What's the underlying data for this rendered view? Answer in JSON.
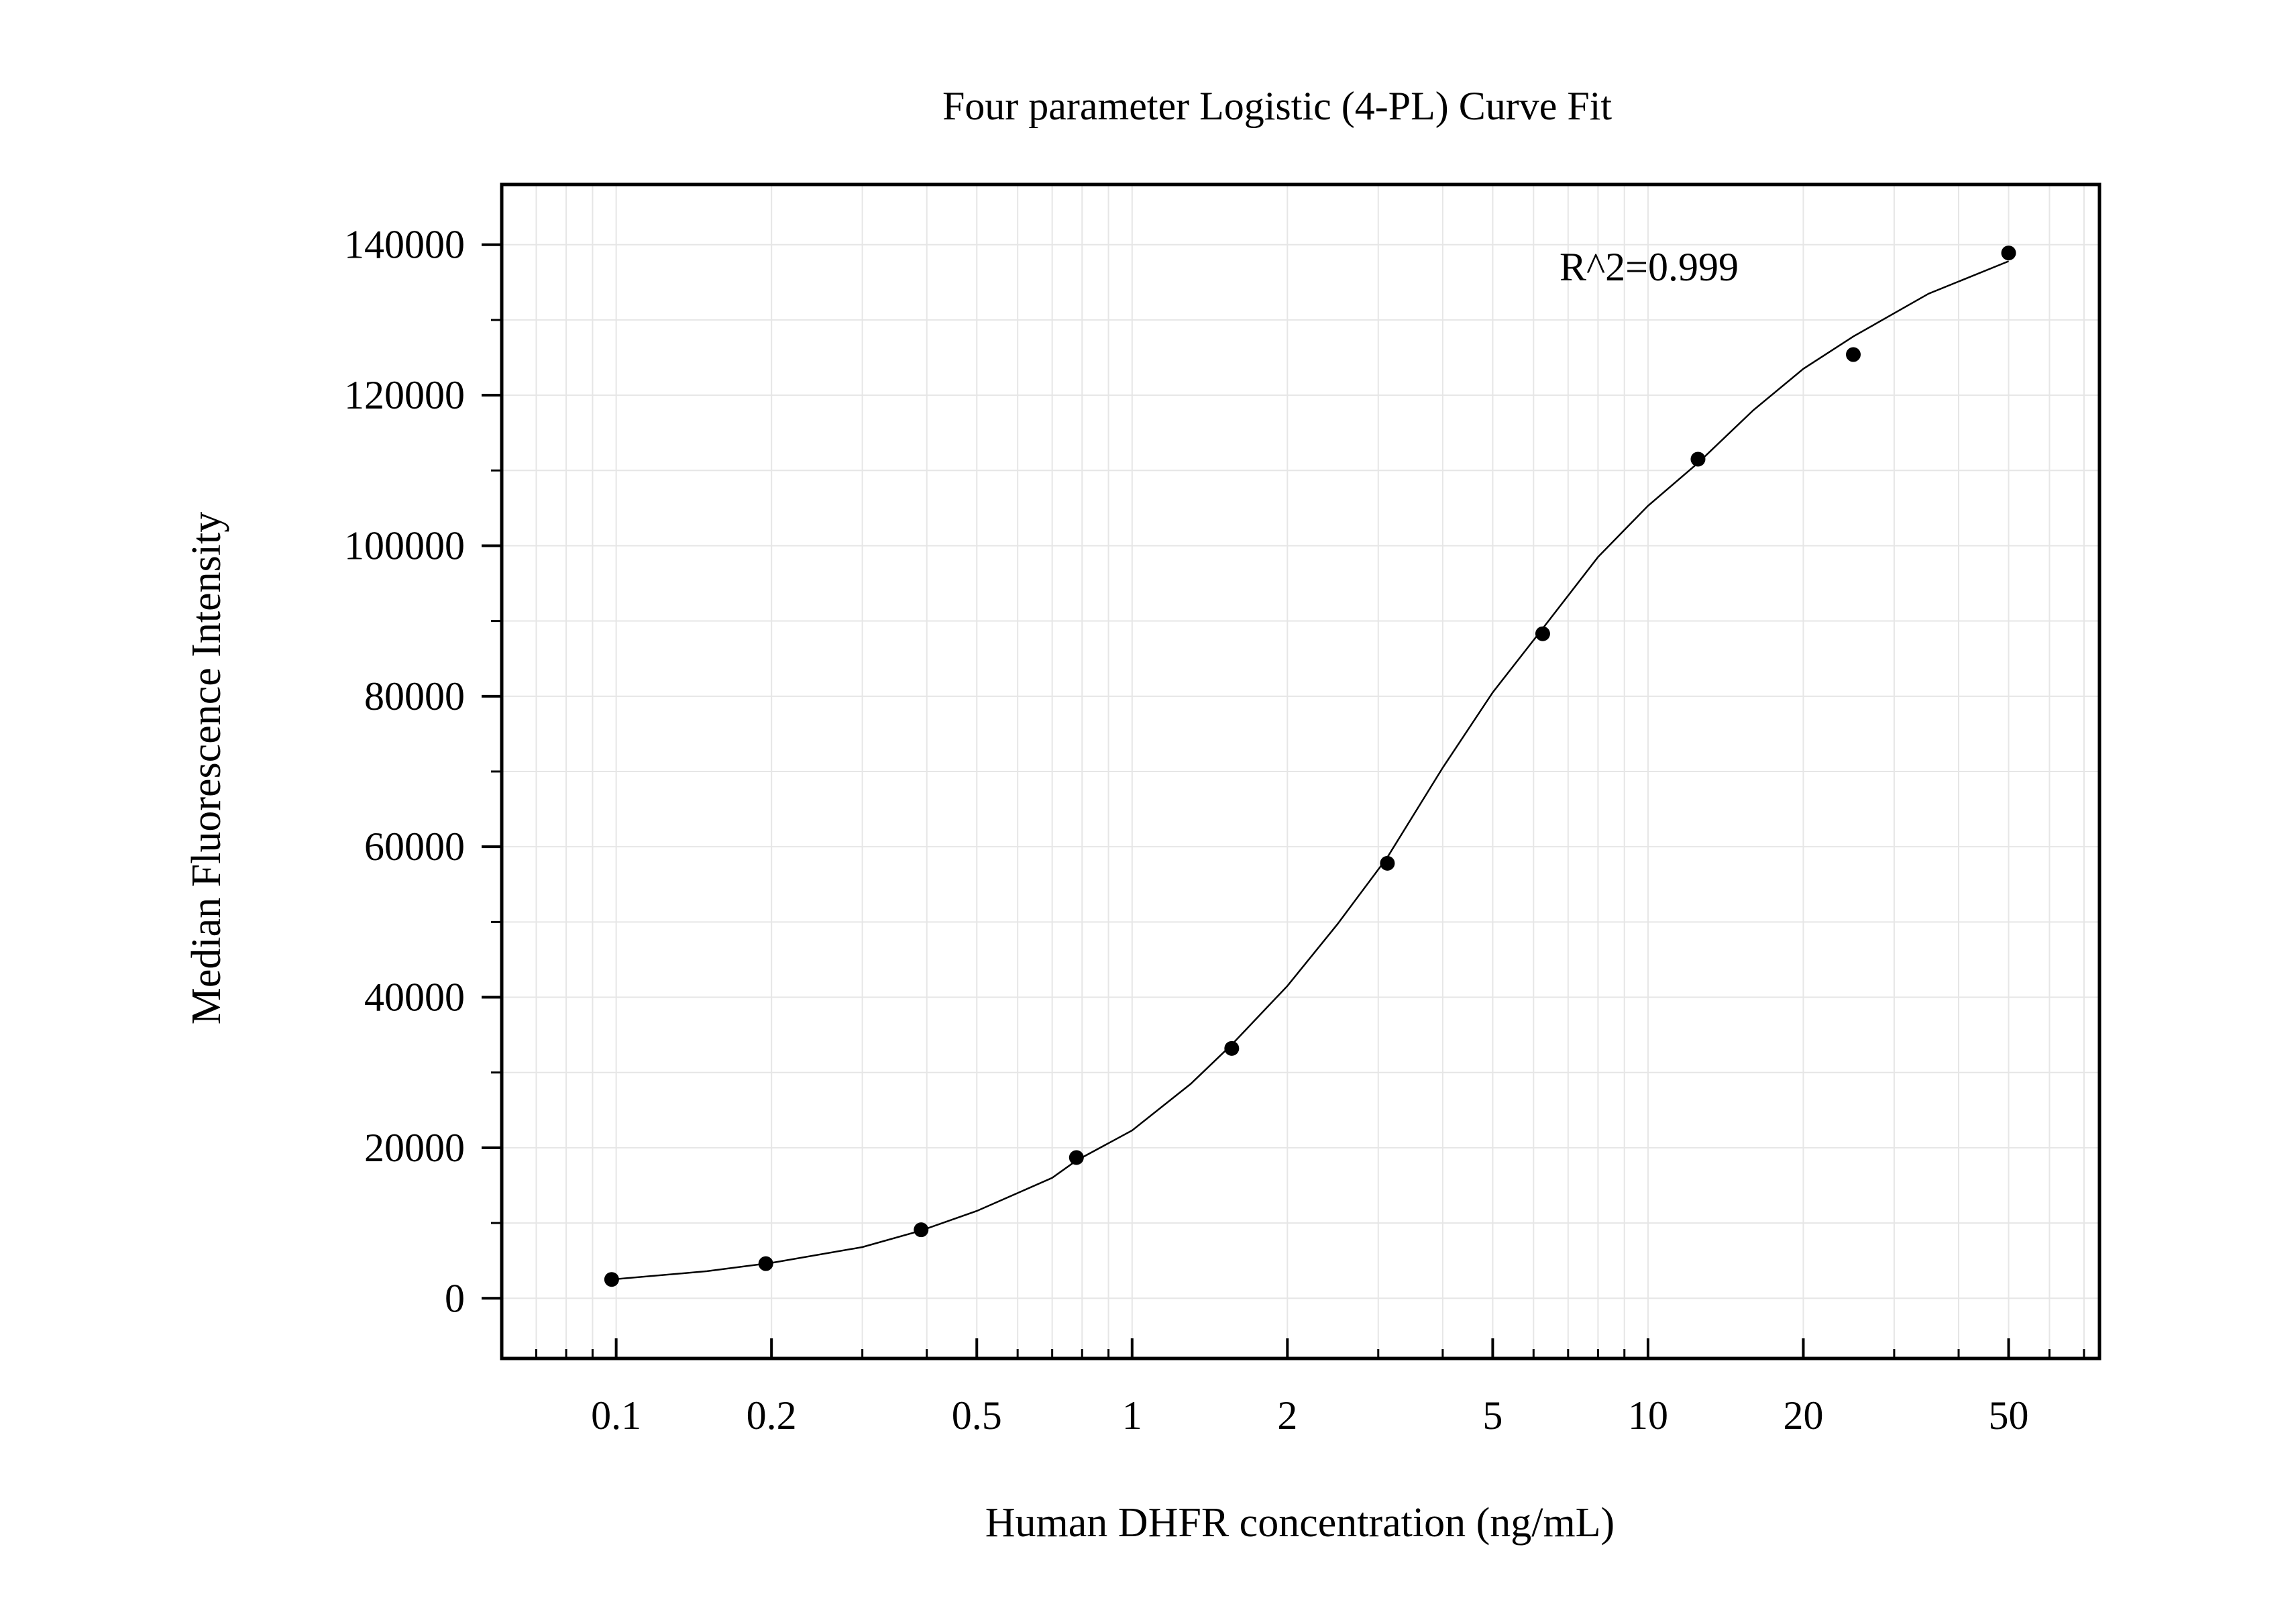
{
  "chart_data": {
    "type": "scatter",
    "title": "Four parameter Logistic (4-PL) Curve Fit",
    "xlabel": "Human DHFR concentration (ng/mL)",
    "ylabel": "Median Fluorescence Intensity",
    "x_scale": "log",
    "xlim": [
      0.06,
      75
    ],
    "ylim": [
      -8000,
      148000
    ],
    "x_ticks": [
      {
        "value": 0.1,
        "label": "0.1"
      },
      {
        "value": 0.2,
        "label": "0.2"
      },
      {
        "value": 0.5,
        "label": "0.5"
      },
      {
        "value": 1,
        "label": "1"
      },
      {
        "value": 2,
        "label": "2"
      },
      {
        "value": 5,
        "label": "5"
      },
      {
        "value": 10,
        "label": "10"
      },
      {
        "value": 20,
        "label": "20"
      },
      {
        "value": 50,
        "label": "50"
      }
    ],
    "y_ticks": [
      {
        "value": 0,
        "label": "0"
      },
      {
        "value": 20000,
        "label": "20000"
      },
      {
        "value": 40000,
        "label": "40000"
      },
      {
        "value": 60000,
        "label": "60000"
      },
      {
        "value": 80000,
        "label": "80000"
      },
      {
        "value": 100000,
        "label": "100000"
      },
      {
        "value": 120000,
        "label": "120000"
      },
      {
        "value": 140000,
        "label": "140000"
      }
    ],
    "grid": true,
    "series": [
      {
        "type": "scatter",
        "color": "#000000",
        "points": [
          {
            "x": 0.098,
            "y": 2500
          },
          {
            "x": 0.195,
            "y": 4600
          },
          {
            "x": 0.39,
            "y": 9100
          },
          {
            "x": 0.78,
            "y": 18700
          },
          {
            "x": 1.56,
            "y": 33200
          },
          {
            "x": 3.125,
            "y": 57800
          },
          {
            "x": 6.25,
            "y": 88300
          },
          {
            "x": 12.5,
            "y": 111500
          },
          {
            "x": 25,
            "y": 125400
          },
          {
            "x": 50,
            "y": 138900
          }
        ]
      },
      {
        "type": "line",
        "color": "#000000",
        "points": [
          {
            "x": 0.098,
            "y": 2500
          },
          {
            "x": 0.15,
            "y": 3600
          },
          {
            "x": 0.2,
            "y": 4700
          },
          {
            "x": 0.3,
            "y": 6800
          },
          {
            "x": 0.39,
            "y": 9000
          },
          {
            "x": 0.5,
            "y": 11600
          },
          {
            "x": 0.7,
            "y": 16000
          },
          {
            "x": 0.78,
            "y": 18300
          },
          {
            "x": 1.0,
            "y": 22300
          },
          {
            "x": 1.3,
            "y": 28500
          },
          {
            "x": 1.56,
            "y": 33700
          },
          {
            "x": 2.0,
            "y": 41500
          },
          {
            "x": 2.5,
            "y": 49700
          },
          {
            "x": 3.125,
            "y": 58600
          },
          {
            "x": 4.0,
            "y": 70500
          },
          {
            "x": 5.0,
            "y": 80500
          },
          {
            "x": 6.25,
            "y": 89000
          },
          {
            "x": 8.0,
            "y": 98500
          },
          {
            "x": 10.0,
            "y": 105300
          },
          {
            "x": 12.5,
            "y": 111000
          },
          {
            "x": 16.0,
            "y": 118000
          },
          {
            "x": 20.0,
            "y": 123500
          },
          {
            "x": 25.0,
            "y": 127800
          },
          {
            "x": 35.0,
            "y": 133500
          },
          {
            "x": 50.0,
            "y": 137800
          }
        ]
      }
    ],
    "annotations": [
      {
        "text": "R^2=0.999",
        "x": 7.0,
        "y": 136000
      }
    ]
  }
}
